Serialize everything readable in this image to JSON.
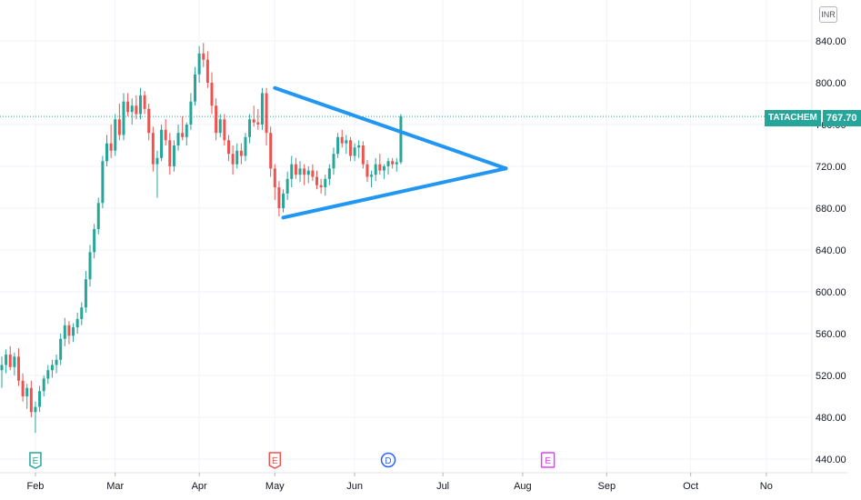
{
  "header": {
    "currency": "INR"
  },
  "last_price": {
    "symbol": "TATACHEM",
    "value": "767.70",
    "color": "#26a69a"
  },
  "colors": {
    "up": "#26a69a",
    "down": "#ef5350",
    "trendline": "#2196f3",
    "grid": "#f0f3fa",
    "axis_text": "#131722"
  },
  "chart_data": {
    "type": "candlestick",
    "symbol": "TATACHEM",
    "currency": "INR",
    "ylim": [
      430,
      860
    ],
    "y_ticks": [
      "840.00",
      "800.00",
      "760.00",
      "720.00",
      "680.00",
      "640.00",
      "600.00",
      "560.00",
      "520.00",
      "480.00",
      "440.00"
    ],
    "x_ticks": [
      {
        "label": "Feb",
        "index": 8
      },
      {
        "label": "Mar",
        "index": 27
      },
      {
        "label": "Apr",
        "index": 47
      },
      {
        "label": "May",
        "index": 65
      },
      {
        "label": "Jun",
        "index": 84
      },
      {
        "label": "Jul",
        "index": 105
      },
      {
        "label": "Aug",
        "index": 124
      },
      {
        "label": "Sep",
        "index": 144
      },
      {
        "label": "Oct",
        "index": 164
      },
      {
        "label": "No",
        "index": 182
      }
    ],
    "candles": [
      [
        525,
        538,
        508,
        530
      ],
      [
        530,
        545,
        522,
        540
      ],
      [
        540,
        548,
        525,
        528
      ],
      [
        528,
        542,
        520,
        538
      ],
      [
        538,
        546,
        510,
        515
      ],
      [
        515,
        522,
        495,
        500
      ],
      [
        500,
        512,
        488,
        508
      ],
      [
        508,
        515,
        480,
        485
      ],
      [
        485,
        495,
        465,
        490
      ],
      [
        490,
        510,
        485,
        505
      ],
      [
        505,
        520,
        500,
        517
      ],
      [
        517,
        530,
        512,
        525
      ],
      [
        525,
        535,
        518,
        530
      ],
      [
        530,
        540,
        522,
        535
      ],
      [
        535,
        560,
        530,
        555
      ],
      [
        555,
        575,
        548,
        568
      ],
      [
        568,
        572,
        550,
        558
      ],
      [
        558,
        570,
        552,
        566
      ],
      [
        566,
        580,
        560,
        574
      ],
      [
        574,
        590,
        568,
        585
      ],
      [
        585,
        620,
        580,
        612
      ],
      [
        612,
        645,
        605,
        638
      ],
      [
        638,
        665,
        632,
        660
      ],
      [
        660,
        690,
        655,
        685
      ],
      [
        685,
        730,
        680,
        725
      ],
      [
        725,
        750,
        720,
        742
      ],
      [
        742,
        760,
        728,
        735
      ],
      [
        735,
        770,
        730,
        765
      ],
      [
        765,
        780,
        745,
        750
      ],
      [
        750,
        790,
        745,
        782
      ],
      [
        782,
        790,
        768,
        772
      ],
      [
        772,
        785,
        760,
        778
      ],
      [
        778,
        788,
        765,
        770
      ],
      [
        770,
        795,
        765,
        788
      ],
      [
        788,
        792,
        770,
        775
      ],
      [
        775,
        780,
        745,
        752
      ],
      [
        752,
        758,
        715,
        722
      ],
      [
        722,
        735,
        690,
        728
      ],
      [
        728,
        760,
        725,
        755
      ],
      [
        755,
        765,
        740,
        745
      ],
      [
        745,
        752,
        712,
        720
      ],
      [
        720,
        745,
        715,
        740
      ],
      [
        740,
        760,
        735,
        752
      ],
      [
        752,
        768,
        745,
        748
      ],
      [
        748,
        762,
        740,
        760
      ],
      [
        760,
        790,
        755,
        782
      ],
      [
        782,
        815,
        778,
        808
      ],
      [
        808,
        835,
        800,
        828
      ],
      [
        828,
        838,
        815,
        822
      ],
      [
        822,
        830,
        795,
        800
      ],
      [
        800,
        810,
        770,
        778
      ],
      [
        778,
        785,
        745,
        752
      ],
      [
        752,
        770,
        748,
        765
      ],
      [
        765,
        770,
        740,
        745
      ],
      [
        745,
        750,
        725,
        732
      ],
      [
        732,
        740,
        712,
        722
      ],
      [
        722,
        742,
        718,
        735
      ],
      [
        735,
        742,
        722,
        730
      ],
      [
        730,
        752,
        725,
        748
      ],
      [
        748,
        770,
        742,
        765
      ],
      [
        765,
        778,
        758,
        762
      ],
      [
        762,
        775,
        755,
        760
      ],
      [
        760,
        795,
        755,
        790
      ],
      [
        790,
        795,
        740,
        752
      ],
      [
        752,
        758,
        710,
        718
      ],
      [
        718,
        722,
        688,
        700
      ],
      [
        700,
        706,
        672,
        680
      ],
      [
        680,
        698,
        676,
        694
      ],
      [
        694,
        715,
        688,
        708
      ],
      [
        708,
        730,
        700,
        722
      ],
      [
        722,
        728,
        708,
        712
      ],
      [
        712,
        725,
        705,
        718
      ],
      [
        718,
        722,
        702,
        712
      ],
      [
        712,
        720,
        704,
        716
      ],
      [
        716,
        722,
        706,
        710
      ],
      [
        710,
        716,
        698,
        702
      ],
      [
        702,
        708,
        694,
        700
      ],
      [
        700,
        712,
        692,
        708
      ],
      [
        708,
        722,
        702,
        718
      ],
      [
        718,
        738,
        712,
        732
      ],
      [
        732,
        752,
        728,
        748
      ],
      [
        748,
        755,
        738,
        742
      ],
      [
        742,
        750,
        732,
        745
      ],
      [
        745,
        748,
        725,
        730
      ],
      [
        730,
        742,
        725,
        738
      ],
      [
        738,
        745,
        728,
        740
      ],
      [
        740,
        744,
        718,
        722
      ],
      [
        722,
        726,
        705,
        710
      ],
      [
        710,
        716,
        700,
        712
      ],
      [
        712,
        728,
        706,
        722
      ],
      [
        722,
        732,
        712,
        716
      ],
      [
        716,
        722,
        708,
        720
      ],
      [
        720,
        728,
        712,
        725
      ],
      [
        725,
        728,
        718,
        722
      ],
      [
        722,
        728,
        715,
        724
      ],
      [
        724,
        770,
        722,
        768
      ]
    ],
    "trendlines": [
      {
        "from": {
          "index": 65,
          "value": 795
        },
        "to": {
          "index": 120,
          "value": 718
        }
      },
      {
        "from": {
          "index": 67,
          "value": 671
        },
        "to": {
          "index": 120,
          "value": 718
        }
      }
    ],
    "event_markers": [
      {
        "label": "E",
        "index": 8,
        "color": "#26a69a",
        "shape": "shield"
      },
      {
        "label": "E",
        "index": 65,
        "color": "#ef5350",
        "shape": "shield"
      },
      {
        "label": "D",
        "index": 92,
        "color": "#2962ff",
        "shape": "circle"
      },
      {
        "label": "E",
        "index": 130,
        "color": "#e040fb",
        "shape": "square"
      }
    ]
  }
}
